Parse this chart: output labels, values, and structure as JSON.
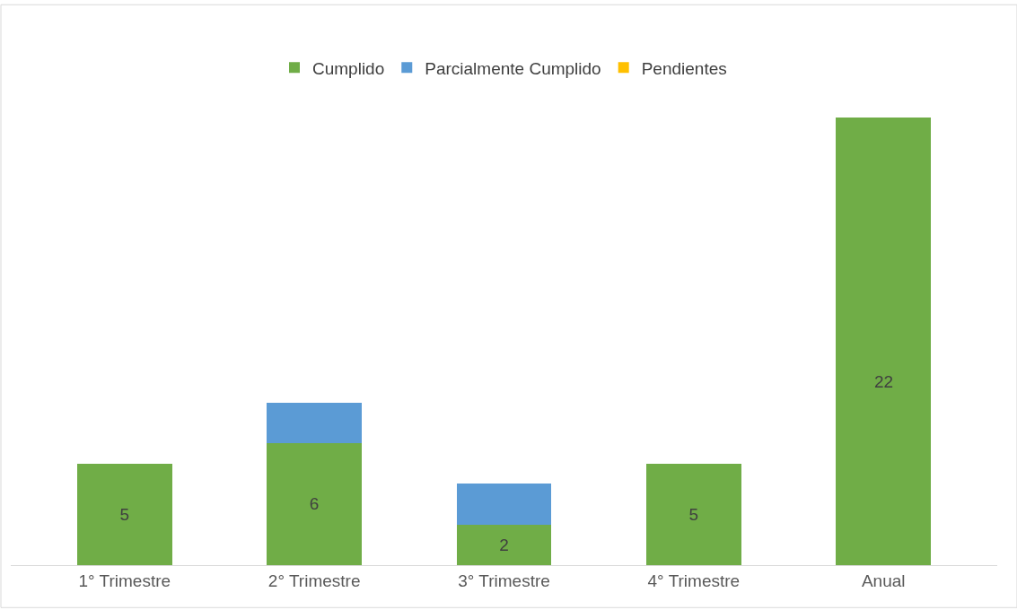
{
  "chart_data": {
    "type": "bar",
    "stacked": true,
    "categories": [
      "1° Trimestre",
      "2° Trimestre",
      "3° Trimestre",
      "4° Trimestre",
      "Anual"
    ],
    "series": [
      {
        "name": "Cumplido",
        "color": "#70ad47",
        "values": [
          5,
          6,
          2,
          5,
          18
        ],
        "value_labels": [
          "5",
          "6",
          "2",
          "5",
          null
        ]
      },
      {
        "name": "Parcialmente Cumplido",
        "color": "#5b9bd5",
        "colors": [
          "#5b9bd5",
          "#5b9bd5",
          "#5b9bd5",
          "#5b9bd5",
          "#70ad47"
        ],
        "values": [
          0,
          2,
          2,
          0,
          4
        ]
      },
      {
        "name": "Pendientes",
        "color": "#ffc000",
        "values": [
          0,
          0,
          0,
          0,
          0
        ]
      }
    ],
    "annotations": [
      "22"
    ],
    "tick_labels": "x",
    "legend": "top"
  }
}
